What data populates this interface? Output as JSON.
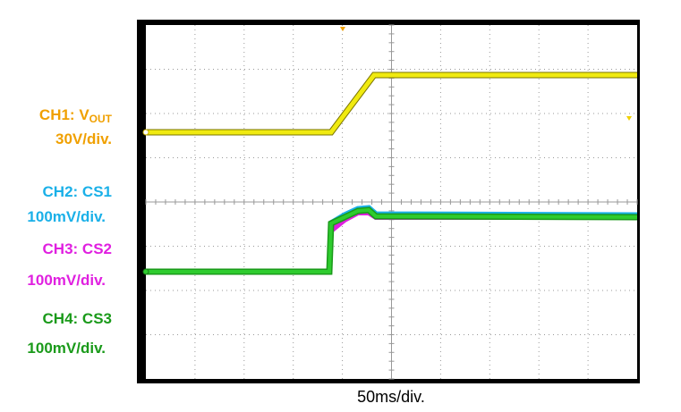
{
  "channels": [
    {
      "name": {
        "text": "CH1: V",
        "subscript": "OUT"
      },
      "scale": "30V/div."
    },
    {
      "name": {
        "text": "CH2: CS1"
      },
      "scale": "100mV/div."
    },
    {
      "name": {
        "text": "CH3: CS2"
      },
      "scale": "100mV/div."
    },
    {
      "name": {
        "text": "CH4: CS3"
      },
      "scale": "100mV/div."
    }
  ],
  "timebase": "50ms/div."
}
